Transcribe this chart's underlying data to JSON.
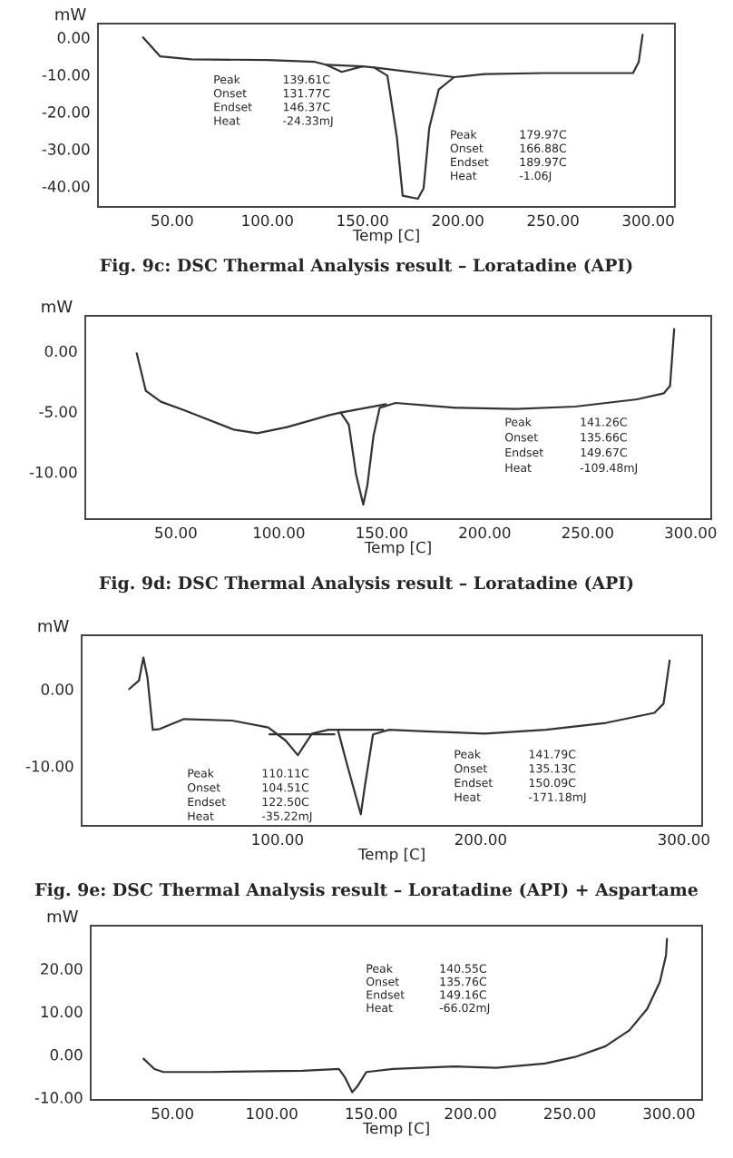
{
  "chart_data": [
    {
      "type": "line",
      "title": "Fig. 9c: DSC Thermal Analysis result – Loratadine (API)",
      "xlabel": "Temp [C]",
      "ylabel": "mW",
      "xlim": [
        11,
        314
      ],
      "xticks": [
        {
          "value": 50,
          "label": "50.00"
        },
        {
          "value": 100,
          "label": "100.00"
        },
        {
          "value": 150,
          "label": "150.00"
        },
        {
          "value": 200,
          "label": "200.00"
        },
        {
          "value": 250,
          "label": "250.00"
        },
        {
          "value": 300,
          "label": "300.00"
        }
      ],
      "ylim": [
        -45.6,
        3.7
      ],
      "yticks": [
        {
          "value": 0,
          "label": "0.00"
        },
        {
          "value": -10,
          "label": "-10.00"
        },
        {
          "value": -20,
          "label": "-20.00"
        },
        {
          "value": -30,
          "label": "-30.00"
        },
        {
          "value": -40,
          "label": "-40.00"
        }
      ],
      "series": [
        {
          "color": "#333333",
          "x": [
            34.7,
            43.6,
            60,
            100,
            125,
            131,
            139,
            150,
            156,
            163,
            168,
            171,
            179,
            182,
            185,
            190,
            198,
            214,
            246,
            292,
            295,
            297
          ],
          "values": [
            0,
            -5.1,
            -5.9,
            -6.1,
            -6.6,
            -7.4,
            -9.3,
            -7.8,
            -8.1,
            -10.3,
            -27,
            -42.6,
            -43.4,
            -40.6,
            -24.3,
            -14,
            -10.7,
            -9.9,
            -9.6,
            -9.6,
            -6.6,
            0.7
          ]
        },
        {
          "color": "#333333",
          "x": [
            131,
            150
          ],
          "values": [
            -7.4,
            -7.8
          ]
        },
        {
          "color": "#333333",
          "x": [
            156,
            198
          ],
          "values": [
            -8.1,
            -10.7
          ]
        }
      ],
      "annotations": [
        "Peak 139.61C\nOnset 131.77C\nEndset 146.37C\nHeat -24.33mJ",
        "Peak 179.97C\nOnset 166.88C\nEndset 189.97C\nHeat -1.06J"
      ]
    },
    {
      "type": "line",
      "title": "Fig. 9d: DSC Thermal Analysis result – Loratadine (API)",
      "xlabel": "Temp [C]",
      "ylabel": "mW",
      "xlim": [
        6,
        310
      ],
      "xticks": [
        {
          "value": 50,
          "label": "50.00"
        },
        {
          "value": 100,
          "label": "100.00"
        },
        {
          "value": 150,
          "label": "150.00"
        },
        {
          "value": 200,
          "label": "200.00"
        },
        {
          "value": 250,
          "label": "250.00"
        },
        {
          "value": 300,
          "label": "300.00"
        }
      ],
      "ylim": [
        -13.9,
        2.9
      ],
      "yticks": [
        {
          "value": 0,
          "label": "0.00"
        },
        {
          "value": -5,
          "label": "-5.00"
        },
        {
          "value": -10,
          "label": "-10.00"
        }
      ],
      "series": [
        {
          "color": "#333333",
          "x": [
            31,
            35.4,
            42.7,
            54,
            78,
            89.5,
            104,
            124.6,
            130,
            134,
            137.5,
            141,
            143,
            146,
            149,
            156.7,
            171,
            186,
            215,
            244,
            274,
            287,
            290,
            292
          ],
          "values": [
            -0.2,
            -3.3,
            -4.2,
            -4.9,
            -6.5,
            -6.8,
            -6.3,
            -5.3,
            -5.1,
            -6.1,
            -10.2,
            -12.7,
            -11.1,
            -7,
            -4.7,
            -4.3,
            -4.5,
            -4.7,
            -4.8,
            -4.6,
            -4,
            -3.5,
            -2.9,
            1.8
          ]
        },
        {
          "color": "#333333",
          "x": [
            130,
            152
          ],
          "values": [
            -5.1,
            -4.4
          ]
        }
      ],
      "annotations": [
        "Peak 141.26C\nOnset 135.66C\nEndset 149.67C\nHeat -109.48mJ"
      ]
    },
    {
      "type": "line",
      "title": "Fig. 9e: DSC Thermal Analysis result – Loratadine (API) + Aspartame",
      "xlabel": "Temp [C]",
      "ylabel": "mW",
      "xlim": [
        3.6,
        309
      ],
      "xticks": [
        {
          "value": 100,
          "label": "100.00"
        },
        {
          "value": 200,
          "label": "200.00"
        },
        {
          "value": 300,
          "label": "300.00"
        }
      ],
      "ylim": [
        -17.8,
        7
      ],
      "yticks": [
        {
          "value": 0,
          "label": "0.00"
        },
        {
          "value": -10,
          "label": "-10.00"
        }
      ],
      "series": [
        {
          "color": "#333333",
          "x": [
            27,
            31.8,
            34,
            36,
            38.6,
            42,
            54,
            77.7,
            95.5,
            104,
            110,
            113,
            117,
            125,
            129.7,
            134,
            141,
            143,
            147,
            155,
            172.7,
            202,
            232,
            261.7,
            285.5,
            290,
            293
          ],
          "values": [
            0,
            1.1,
            4.1,
            1.5,
            -5.3,
            -5.2,
            -3.9,
            -4.1,
            -5,
            -6.7,
            -8.6,
            -7.4,
            -5.8,
            -5.3,
            -5.3,
            -9.6,
            -16.3,
            -12.6,
            -5.9,
            -5.3,
            -5.5,
            -5.8,
            -5.3,
            -4.4,
            -3.1,
            -1.9,
            3.7
          ]
        },
        {
          "color": "#333333",
          "x": [
            96,
            128
          ],
          "values": [
            -5.9,
            -5.9
          ]
        },
        {
          "color": "#333333",
          "x": [
            130,
            152
          ],
          "values": [
            -5.3,
            -5.3
          ]
        }
      ],
      "annotations": [
        "Peak 110.11C\nOnset 104.51C\nEndset 122.50C\nHeat -35.22mJ",
        "Peak 141.79C\nOnset 135.13C\nEndset 150.09C\nHeat -171.18mJ"
      ]
    },
    {
      "type": "line",
      "xlabel": "Temp [C]",
      "ylabel": "mW",
      "xlim": [
        8.8,
        316.7
      ],
      "xticks": [
        {
          "value": 50,
          "label": "50.00"
        },
        {
          "value": 100,
          "label": "100.00"
        },
        {
          "value": 150,
          "label": "150.00"
        },
        {
          "value": 200,
          "label": "200.00"
        },
        {
          "value": 250,
          "label": "250.00"
        },
        {
          "value": 300,
          "label": "300.00"
        }
      ],
      "ylim": [
        -10.6,
        30
      ],
      "yticks": [
        {
          "value": 20,
          "label": "20.00"
        },
        {
          "value": 10,
          "label": "10.00"
        },
        {
          "value": 0,
          "label": "0.00"
        },
        {
          "value": -10,
          "label": "-10.00"
        }
      ],
      "series": [
        {
          "color": "#333333",
          "x": [
            35.4,
            40.9,
            45.4,
            69.8,
            115.5,
            133.8,
            136.9,
            140.5,
            143,
            147.6,
            161,
            191.8,
            213,
            237.5,
            252.7,
            268,
            280,
            289,
            295.4,
            298.5,
            299
          ],
          "values": [
            -1,
            -3.4,
            -4.1,
            -4.1,
            -3.8,
            -3.4,
            -5.4,
            -8.8,
            -7.5,
            -4.1,
            -3.4,
            -2.8,
            -3.1,
            -2.1,
            -0.6,
            1.9,
            5.6,
            10.6,
            16.9,
            23.1,
            26.9
          ]
        }
      ],
      "annotations": [
        "Peak 140.55C\nOnset 135.76C\nEndset 149.16C\nHeat -66.02mJ"
      ]
    }
  ]
}
